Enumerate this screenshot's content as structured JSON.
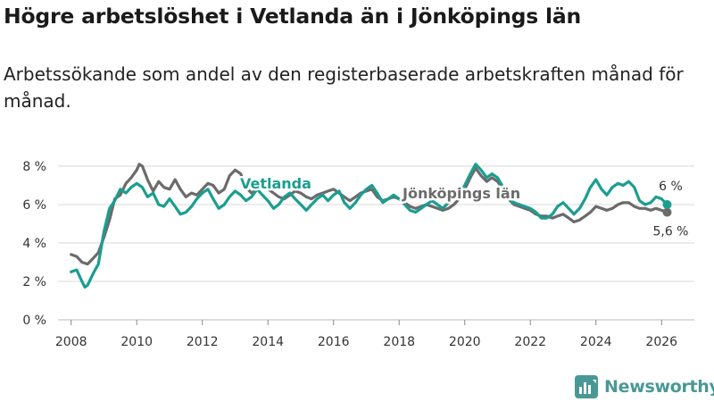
{
  "title": "Högre arbetslöshet i Vetlanda än i Jönköpings län",
  "subtitle": "Arbetssökande som andel av den registerbaserade arbetskraften månad för månad.",
  "brand": "Newsworthy",
  "colors": {
    "vetlanda": "#1a9e8f",
    "lan": "#6b6b6b",
    "grid": "#d9d9d9",
    "brand": "#4a9896"
  },
  "chart_data": {
    "type": "line",
    "title": "Högre arbetslöshet i Vetlanda än i Jönköpings län",
    "xlabel": "",
    "ylabel": "",
    "xlim": [
      2007.6,
      2027.0
    ],
    "ylim": [
      0,
      8
    ],
    "grid": true,
    "x_ticks": [
      2008,
      2010,
      2012,
      2014,
      2016,
      2018,
      2020,
      2022,
      2024,
      2026
    ],
    "x_tick_labels": [
      "2008",
      "2010",
      "2012",
      "2014",
      "2016",
      "2018",
      "2020",
      "2022",
      "2024",
      "2026"
    ],
    "y_ticks": [
      0,
      2,
      4,
      6,
      8
    ],
    "y_tick_labels": [
      "0 %",
      "2 %",
      "4 %",
      "6 %",
      "8 %"
    ],
    "series": [
      {
        "name": "Jönköpings län",
        "end_label": "5,6 %",
        "points": [
          [
            2008.0,
            3.4
          ],
          [
            2008.17,
            3.3
          ],
          [
            2008.33,
            3.0
          ],
          [
            2008.5,
            2.9
          ],
          [
            2008.67,
            3.2
          ],
          [
            2008.83,
            3.5
          ],
          [
            2009.0,
            4.3
          ],
          [
            2009.17,
            5.2
          ],
          [
            2009.33,
            6.3
          ],
          [
            2009.5,
            6.5
          ],
          [
            2009.67,
            7.1
          ],
          [
            2009.83,
            7.4
          ],
          [
            2010.0,
            7.8
          ],
          [
            2010.08,
            8.1
          ],
          [
            2010.17,
            8.0
          ],
          [
            2010.33,
            7.3
          ],
          [
            2010.5,
            6.7
          ],
          [
            2010.67,
            7.2
          ],
          [
            2010.83,
            6.9
          ],
          [
            2011.0,
            6.8
          ],
          [
            2011.17,
            7.3
          ],
          [
            2011.33,
            6.8
          ],
          [
            2011.5,
            6.4
          ],
          [
            2011.67,
            6.6
          ],
          [
            2011.83,
            6.5
          ],
          [
            2012.0,
            6.8
          ],
          [
            2012.17,
            7.1
          ],
          [
            2012.33,
            7.0
          ],
          [
            2012.5,
            6.6
          ],
          [
            2012.67,
            6.8
          ],
          [
            2012.83,
            7.5
          ],
          [
            2013.0,
            7.8
          ],
          [
            2013.17,
            7.6
          ],
          [
            2013.33,
            6.9
          ],
          [
            2013.5,
            6.6
          ],
          [
            2013.67,
            6.8
          ],
          [
            2013.83,
            7.0
          ],
          [
            2014.0,
            6.8
          ],
          [
            2014.17,
            6.6
          ],
          [
            2014.33,
            6.4
          ],
          [
            2014.5,
            6.3
          ],
          [
            2014.67,
            6.5
          ],
          [
            2014.83,
            6.7
          ],
          [
            2015.0,
            6.6
          ],
          [
            2015.17,
            6.4
          ],
          [
            2015.33,
            6.3
          ],
          [
            2015.5,
            6.5
          ],
          [
            2015.67,
            6.6
          ],
          [
            2015.83,
            6.7
          ],
          [
            2016.0,
            6.8
          ],
          [
            2016.17,
            6.6
          ],
          [
            2016.33,
            6.4
          ],
          [
            2016.5,
            6.2
          ],
          [
            2016.67,
            6.4
          ],
          [
            2016.83,
            6.6
          ],
          [
            2017.0,
            6.7
          ],
          [
            2017.17,
            6.8
          ],
          [
            2017.33,
            6.4
          ],
          [
            2017.5,
            6.2
          ],
          [
            2017.67,
            6.3
          ],
          [
            2017.83,
            6.4
          ],
          [
            2018.0,
            6.3
          ],
          [
            2018.17,
            6.1
          ],
          [
            2018.33,
            5.9
          ],
          [
            2018.5,
            5.8
          ],
          [
            2018.67,
            5.9
          ],
          [
            2018.83,
            6.0
          ],
          [
            2019.0,
            5.9
          ],
          [
            2019.17,
            5.8
          ],
          [
            2019.33,
            5.7
          ],
          [
            2019.5,
            5.8
          ],
          [
            2019.67,
            6.0
          ],
          [
            2019.83,
            6.3
          ],
          [
            2020.0,
            6.8
          ],
          [
            2020.17,
            7.4
          ],
          [
            2020.33,
            7.9
          ],
          [
            2020.5,
            7.5
          ],
          [
            2020.67,
            7.2
          ],
          [
            2020.83,
            7.4
          ],
          [
            2021.0,
            7.2
          ],
          [
            2021.17,
            6.8
          ],
          [
            2021.33,
            6.3
          ],
          [
            2021.5,
            6.0
          ],
          [
            2021.67,
            5.9
          ],
          [
            2021.83,
            5.8
          ],
          [
            2022.0,
            5.7
          ],
          [
            2022.17,
            5.5
          ],
          [
            2022.33,
            5.4
          ],
          [
            2022.5,
            5.4
          ],
          [
            2022.67,
            5.3
          ],
          [
            2022.83,
            5.4
          ],
          [
            2023.0,
            5.5
          ],
          [
            2023.17,
            5.3
          ],
          [
            2023.33,
            5.1
          ],
          [
            2023.5,
            5.2
          ],
          [
            2023.67,
            5.4
          ],
          [
            2023.83,
            5.6
          ],
          [
            2024.0,
            5.9
          ],
          [
            2024.17,
            5.8
          ],
          [
            2024.33,
            5.7
          ],
          [
            2024.5,
            5.8
          ],
          [
            2024.67,
            6.0
          ],
          [
            2024.83,
            6.1
          ],
          [
            2025.0,
            6.1
          ],
          [
            2025.17,
            5.9
          ],
          [
            2025.33,
            5.8
          ],
          [
            2025.5,
            5.8
          ],
          [
            2025.67,
            5.7
          ],
          [
            2025.83,
            5.8
          ],
          [
            2026.0,
            5.7
          ],
          [
            2026.17,
            5.6
          ]
        ]
      },
      {
        "name": "Vetlanda",
        "end_label": "6 %",
        "points": [
          [
            2008.0,
            2.5
          ],
          [
            2008.17,
            2.6
          ],
          [
            2008.33,
            2.0
          ],
          [
            2008.42,
            1.7
          ],
          [
            2008.5,
            1.8
          ],
          [
            2008.67,
            2.4
          ],
          [
            2008.83,
            2.9
          ],
          [
            2009.0,
            4.6
          ],
          [
            2009.17,
            5.8
          ],
          [
            2009.33,
            6.2
          ],
          [
            2009.5,
            6.8
          ],
          [
            2009.67,
            6.6
          ],
          [
            2009.83,
            6.9
          ],
          [
            2010.0,
            7.1
          ],
          [
            2010.17,
            6.9
          ],
          [
            2010.33,
            6.4
          ],
          [
            2010.5,
            6.6
          ],
          [
            2010.67,
            6.0
          ],
          [
            2010.83,
            5.9
          ],
          [
            2011.0,
            6.3
          ],
          [
            2011.17,
            5.9
          ],
          [
            2011.33,
            5.5
          ],
          [
            2011.5,
            5.6
          ],
          [
            2011.67,
            5.9
          ],
          [
            2011.83,
            6.3
          ],
          [
            2012.0,
            6.6
          ],
          [
            2012.17,
            6.8
          ],
          [
            2012.33,
            6.3
          ],
          [
            2012.5,
            5.8
          ],
          [
            2012.67,
            6.0
          ],
          [
            2012.83,
            6.4
          ],
          [
            2013.0,
            6.7
          ],
          [
            2013.17,
            6.5
          ],
          [
            2013.33,
            6.2
          ],
          [
            2013.5,
            6.4
          ],
          [
            2013.67,
            6.8
          ],
          [
            2013.83,
            6.5
          ],
          [
            2014.0,
            6.2
          ],
          [
            2014.17,
            5.8
          ],
          [
            2014.33,
            6.0
          ],
          [
            2014.5,
            6.4
          ],
          [
            2014.67,
            6.6
          ],
          [
            2014.83,
            6.3
          ],
          [
            2015.0,
            6.0
          ],
          [
            2015.17,
            5.7
          ],
          [
            2015.33,
            6.0
          ],
          [
            2015.5,
            6.3
          ],
          [
            2015.67,
            6.5
          ],
          [
            2015.83,
            6.2
          ],
          [
            2016.0,
            6.5
          ],
          [
            2016.17,
            6.7
          ],
          [
            2016.33,
            6.1
          ],
          [
            2016.5,
            5.8
          ],
          [
            2016.67,
            6.1
          ],
          [
            2016.83,
            6.5
          ],
          [
            2017.0,
            6.8
          ],
          [
            2017.17,
            7.0
          ],
          [
            2017.33,
            6.6
          ],
          [
            2017.5,
            6.1
          ],
          [
            2017.67,
            6.3
          ],
          [
            2017.83,
            6.5
          ],
          [
            2018.0,
            6.3
          ],
          [
            2018.17,
            6.0
          ],
          [
            2018.33,
            5.7
          ],
          [
            2018.5,
            5.6
          ],
          [
            2018.67,
            5.8
          ],
          [
            2018.83,
            6.0
          ],
          [
            2019.0,
            6.2
          ],
          [
            2019.17,
            6.0
          ],
          [
            2019.33,
            5.8
          ],
          [
            2019.5,
            6.1
          ],
          [
            2019.67,
            6.4
          ],
          [
            2019.83,
            6.6
          ],
          [
            2020.0,
            7.0
          ],
          [
            2020.17,
            7.6
          ],
          [
            2020.33,
            8.1
          ],
          [
            2020.5,
            7.8
          ],
          [
            2020.67,
            7.4
          ],
          [
            2020.83,
            7.6
          ],
          [
            2021.0,
            7.4
          ],
          [
            2021.17,
            6.9
          ],
          [
            2021.33,
            6.3
          ],
          [
            2021.5,
            6.1
          ],
          [
            2021.67,
            6.0
          ],
          [
            2021.83,
            5.9
          ],
          [
            2022.0,
            5.8
          ],
          [
            2022.17,
            5.6
          ],
          [
            2022.33,
            5.3
          ],
          [
            2022.5,
            5.3
          ],
          [
            2022.67,
            5.5
          ],
          [
            2022.83,
            5.9
          ],
          [
            2023.0,
            6.1
          ],
          [
            2023.17,
            5.8
          ],
          [
            2023.33,
            5.5
          ],
          [
            2023.5,
            5.8
          ],
          [
            2023.67,
            6.3
          ],
          [
            2023.83,
            6.9
          ],
          [
            2024.0,
            7.3
          ],
          [
            2024.17,
            6.8
          ],
          [
            2024.33,
            6.5
          ],
          [
            2024.5,
            6.9
          ],
          [
            2024.67,
            7.1
          ],
          [
            2024.83,
            7.0
          ],
          [
            2025.0,
            7.2
          ],
          [
            2025.17,
            6.9
          ],
          [
            2025.33,
            6.2
          ],
          [
            2025.5,
            6.0
          ],
          [
            2025.67,
            6.1
          ],
          [
            2025.83,
            6.4
          ],
          [
            2026.0,
            6.3
          ],
          [
            2026.17,
            6.0
          ]
        ]
      }
    ]
  }
}
